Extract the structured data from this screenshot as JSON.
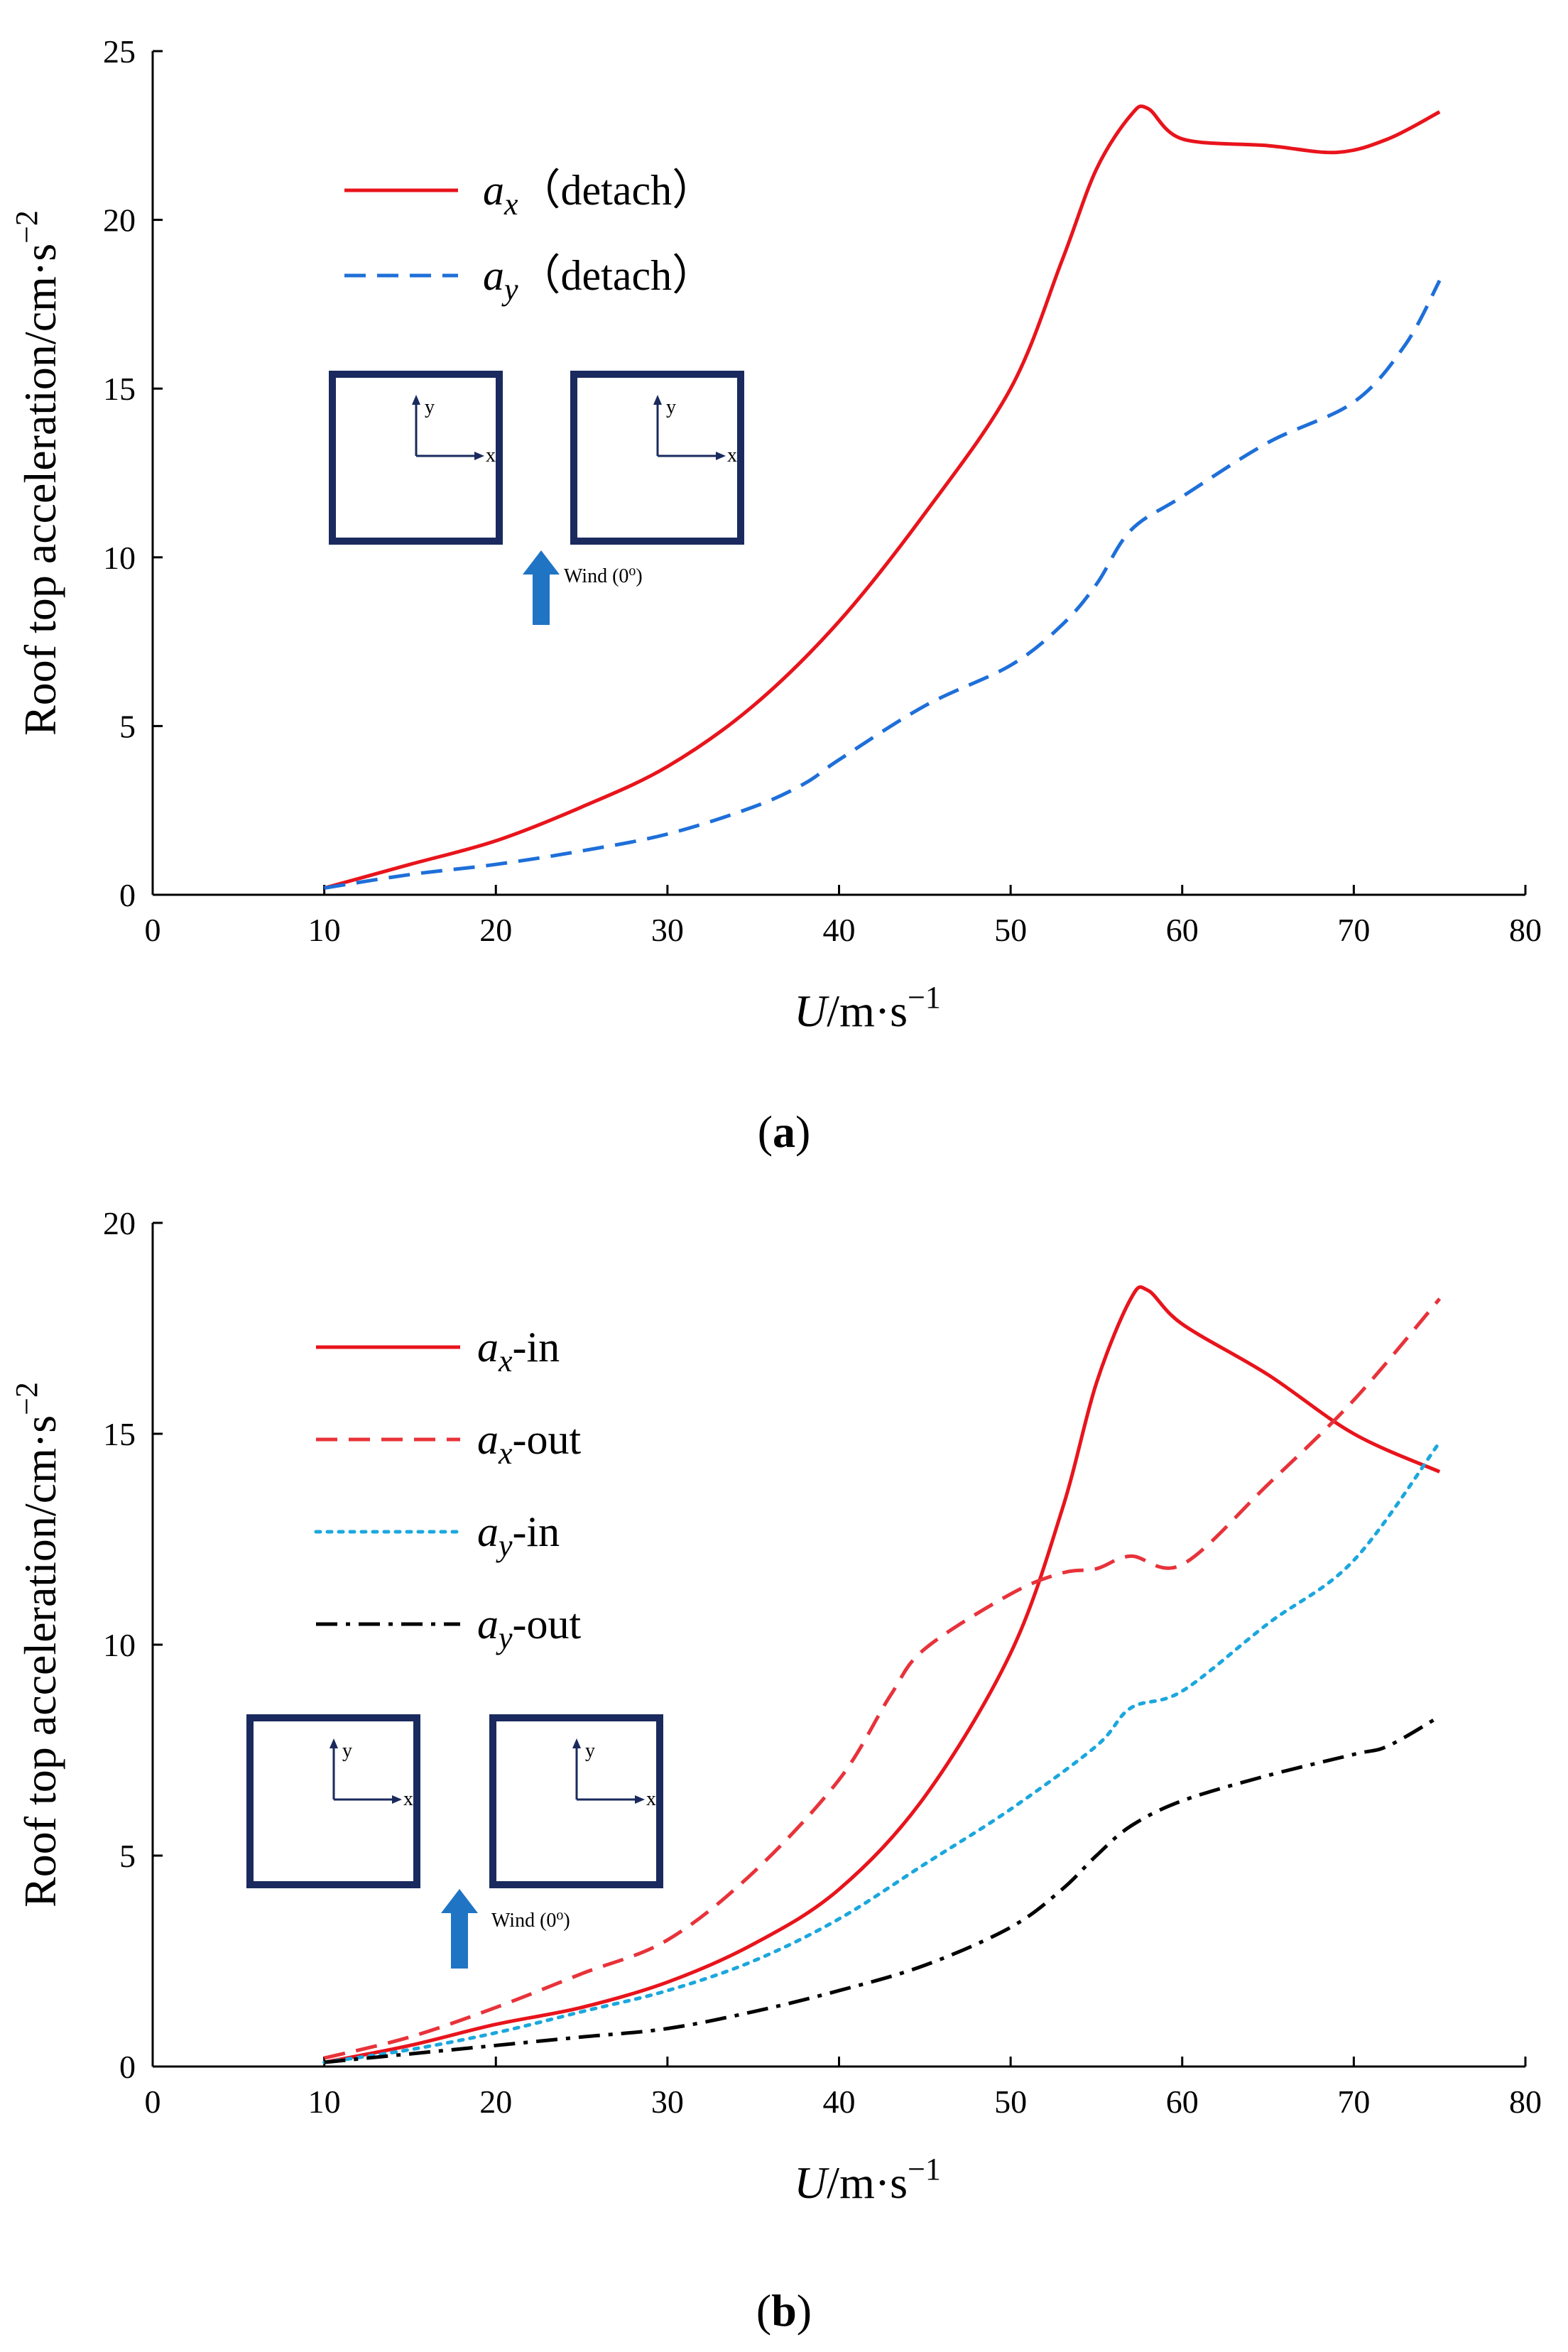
{
  "chart_data": [
    {
      "panel": "a",
      "type": "line",
      "xlabel_var": "U",
      "xlabel_unit": "/m·s",
      "xlabel_exp": "−1",
      "ylabel_text": "Roof top acceleration/cm·s",
      "ylabel_exp": "−2",
      "xlim": [
        0,
        80
      ],
      "ylim": [
        0,
        25
      ],
      "xticks": [
        0,
        10,
        20,
        30,
        40,
        50,
        60,
        70,
        80
      ],
      "yticks": [
        0,
        5,
        10,
        15,
        20,
        25
      ],
      "grid": false,
      "legend_position": "top-left",
      "series": [
        {
          "name": "a_x (detach)",
          "symbol": "a",
          "subscript": "x",
          "suffix": "（detach）",
          "color": "#e8141c",
          "style": "solid",
          "x": [
            10,
            15,
            20,
            25,
            30,
            35,
            40,
            45,
            50,
            53,
            55,
            57,
            58,
            60,
            65,
            69,
            72,
            75
          ],
          "y": [
            0.2,
            0.9,
            1.6,
            2.6,
            3.8,
            5.6,
            8.1,
            11.3,
            15.0,
            18.8,
            21.5,
            23.1,
            23.3,
            22.4,
            22.2,
            22.0,
            22.4,
            23.2
          ]
        },
        {
          "name": "a_y (detach)",
          "symbol": "a",
          "subscript": "y",
          "suffix": "（detach）",
          "color": "#1e6fd9",
          "style": "dashed",
          "x": [
            10,
            15,
            20,
            25,
            30,
            35,
            38,
            40,
            45,
            50,
            53,
            55,
            57,
            60,
            65,
            70,
            73,
            75
          ],
          "y": [
            0.2,
            0.6,
            0.9,
            1.3,
            1.8,
            2.6,
            3.3,
            4.0,
            5.6,
            6.8,
            8.0,
            9.2,
            10.8,
            11.8,
            13.4,
            14.6,
            16.3,
            18.2
          ]
        }
      ],
      "inset": {
        "axis_x_label": "x",
        "axis_y_label": "y",
        "wind_label": "Wind (0",
        "wind_label_sup": "o",
        "wind_label_end": ")"
      }
    },
    {
      "panel": "b",
      "type": "line",
      "xlabel_var": "U",
      "xlabel_unit": "/m·s",
      "xlabel_exp": "−1",
      "ylabel_text": "Roof top acceleration/cm·s",
      "ylabel_exp": "−2",
      "xlim": [
        0,
        80
      ],
      "ylim": [
        0,
        20
      ],
      "xticks": [
        0,
        10,
        20,
        30,
        40,
        50,
        60,
        70,
        80
      ],
      "yticks": [
        0,
        5,
        10,
        15,
        20
      ],
      "grid": false,
      "legend_position": "top-left",
      "series": [
        {
          "name": "a_x-in",
          "symbol": "a",
          "subscript": "x",
          "suffix": "-in",
          "color": "#e8141c",
          "style": "solid",
          "x": [
            10,
            15,
            20,
            25,
            30,
            35,
            40,
            45,
            50,
            53,
            55,
            57,
            58,
            60,
            65,
            70,
            75
          ],
          "y": [
            0.1,
            0.5,
            1.0,
            1.4,
            2.0,
            2.9,
            4.2,
            6.4,
            9.8,
            13.2,
            16.2,
            18.2,
            18.4,
            17.6,
            16.4,
            15.0,
            14.1
          ]
        },
        {
          "name": "a_x-out",
          "symbol": "a",
          "subscript": "x",
          "suffix": "-out",
          "color": "#e8323a",
          "style": "dashed",
          "x": [
            10,
            15,
            20,
            25,
            30,
            35,
            40,
            43,
            45,
            50,
            53,
            55,
            57,
            60,
            65,
            70,
            75
          ],
          "y": [
            0.2,
            0.7,
            1.4,
            2.2,
            3.0,
            4.6,
            6.8,
            8.8,
            9.9,
            11.2,
            11.7,
            11.8,
            12.1,
            11.9,
            13.8,
            15.8,
            18.2
          ]
        },
        {
          "name": "a_y-in",
          "symbol": "a",
          "subscript": "y",
          "suffix": "-in",
          "color": "#1ba7dd",
          "style": "dotted",
          "x": [
            10,
            15,
            20,
            25,
            30,
            35,
            40,
            45,
            50,
            55,
            57,
            60,
            65,
            70,
            75
          ],
          "y": [
            0.1,
            0.4,
            0.8,
            1.3,
            1.8,
            2.5,
            3.5,
            4.8,
            6.1,
            7.6,
            8.5,
            8.9,
            10.5,
            12.0,
            14.8
          ]
        },
        {
          "name": "a_y-out",
          "symbol": "a",
          "subscript": "y",
          "suffix": "-out",
          "color": "#000000",
          "style": "dashdot",
          "x": [
            10,
            15,
            20,
            25,
            30,
            35,
            40,
            45,
            50,
            53,
            55,
            57,
            60,
            65,
            70,
            72,
            75
          ],
          "y": [
            0.1,
            0.3,
            0.5,
            0.7,
            0.9,
            1.3,
            1.8,
            2.4,
            3.3,
            4.2,
            5.0,
            5.7,
            6.3,
            6.9,
            7.4,
            7.6,
            8.3
          ]
        }
      ],
      "inset": {
        "axis_x_label": "x",
        "axis_y_label": "y",
        "wind_label": "Wind (0",
        "wind_label_sup": "o",
        "wind_label_end": ")"
      }
    }
  ]
}
